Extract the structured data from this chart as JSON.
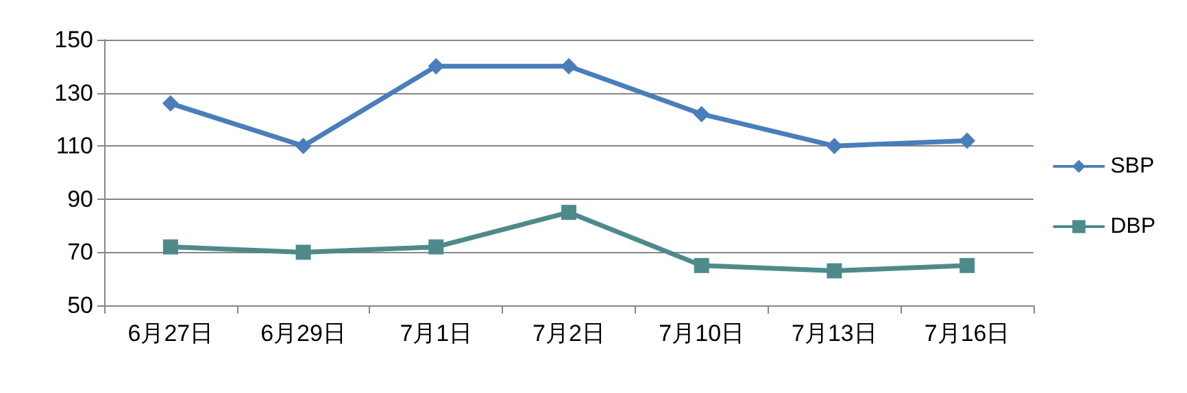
{
  "chart_data": {
    "type": "line",
    "categories": [
      "6月27日",
      "6月29日",
      "7月1日",
      "7月2日",
      "7月10日",
      "7月13日",
      "7月16日"
    ],
    "series": [
      {
        "name": "SBP",
        "color": "#4a7ebb",
        "marker": "diamond",
        "values": [
          126,
          110,
          140,
          140,
          122,
          110,
          112
        ]
      },
      {
        "name": "DBP",
        "color": "#4f8a8b",
        "marker": "square",
        "values": [
          72,
          70,
          72,
          85,
          65,
          63,
          65
        ]
      }
    ],
    "ylim": [
      50,
      150
    ],
    "yticks": [
      50,
      70,
      90,
      110,
      130,
      150
    ],
    "grid": "y",
    "legend": "right",
    "line_style": "solid"
  }
}
